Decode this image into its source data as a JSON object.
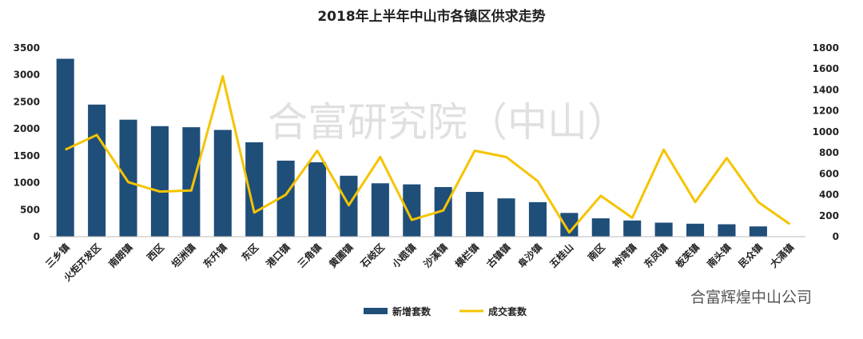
{
  "chart_data": {
    "type": "bar-line",
    "title": "2018年上半年中山市各镇区供求走势",
    "categories": [
      "三乡镇",
      "火炬开发区",
      "南朗镇",
      "西区",
      "坦洲镇",
      "东升镇",
      "东区",
      "港口镇",
      "三角镇",
      "黄圃镇",
      "石岐区",
      "小榄镇",
      "沙溪镇",
      "横栏镇",
      "古镇镇",
      "阜沙镇",
      "五桂山",
      "南区",
      "神湾镇",
      "东凤镇",
      "板芙镇",
      "南头镇",
      "民众镇",
      "大涌镇"
    ],
    "series": [
      {
        "name": "新增套数",
        "color": "#1f4e79",
        "type": "bar",
        "values": [
          3300,
          2450,
          2170,
          2050,
          2030,
          1980,
          1750,
          1410,
          1380,
          1130,
          990,
          970,
          920,
          830,
          710,
          640,
          440,
          340,
          300,
          260,
          240,
          230,
          190,
          null
        ]
      },
      {
        "name": "成交套数",
        "color": "#f5c400",
        "type": "line",
        "axis": "y2",
        "values": [
          830,
          970,
          520,
          430,
          440,
          1530,
          230,
          400,
          820,
          300,
          760,
          160,
          250,
          820,
          760,
          530,
          40,
          390,
          180,
          830,
          330,
          750,
          330,
          120
        ]
      }
    ],
    "ylim": [
      0,
      3500
    ],
    "yticks": [
      0,
      500,
      1000,
      1500,
      2000,
      2500,
      3000,
      3500
    ],
    "y2lim": [
      0,
      1800
    ],
    "y2ticks": [
      0,
      200,
      400,
      600,
      800,
      1000,
      1200,
      1400,
      1600,
      1800
    ],
    "legend": "bottom",
    "watermarks": [
      "合富研究院（中山）",
      "合富辉煌中山公司"
    ]
  }
}
